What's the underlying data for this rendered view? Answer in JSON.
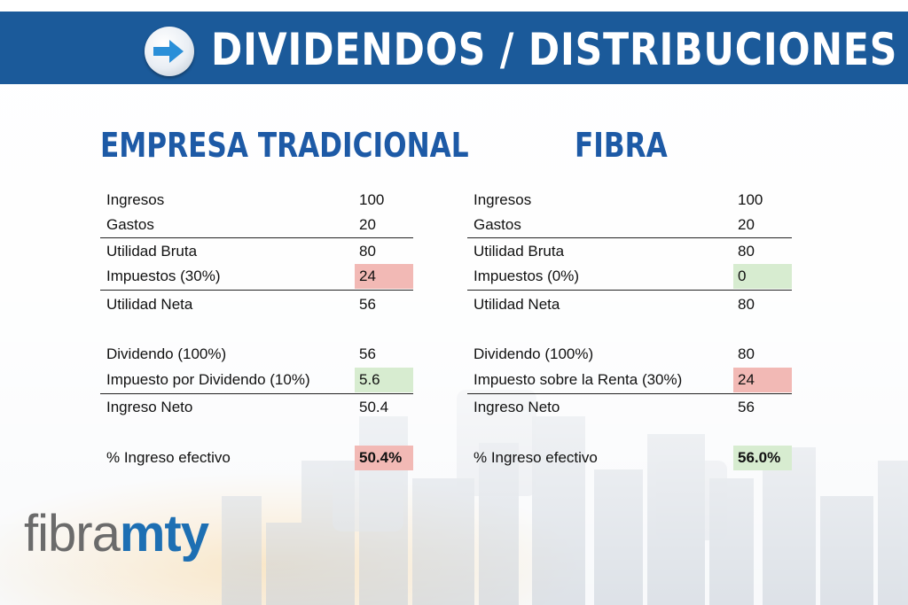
{
  "header": {
    "title": "DIVIDENDOS / DISTRIBUCIONES"
  },
  "left": {
    "title": "EMPRESA TRADICIONAL",
    "rows": [
      {
        "label": "Ingresos",
        "value": "100"
      },
      {
        "label": "Gastos",
        "value": "20"
      },
      {
        "label": "Utilidad Bruta",
        "value": "80"
      },
      {
        "label": "Impuestos (30%)",
        "value": "24"
      },
      {
        "label": "Utilidad Neta",
        "value": "56"
      },
      {
        "label": "Dividendo (100%)",
        "value": "56"
      },
      {
        "label": "Impuesto por Dividendo (10%)",
        "value": "5.6"
      },
      {
        "label": "Ingreso Neto",
        "value": "50.4"
      },
      {
        "label": "% Ingreso efectivo",
        "value": "50.4%"
      }
    ]
  },
  "right": {
    "title": "FIBRA",
    "rows": [
      {
        "label": "Ingresos",
        "value": "100"
      },
      {
        "label": "Gastos",
        "value": "20"
      },
      {
        "label": "Utilidad Bruta",
        "value": "80"
      },
      {
        "label": "Impuestos (0%)",
        "value": "0"
      },
      {
        "label": "Utilidad Neta",
        "value": "80"
      },
      {
        "label": "Dividendo (100%)",
        "value": "80"
      },
      {
        "label": "Impuesto sobre la Renta (30%)",
        "value": "24"
      },
      {
        "label": "Ingreso Neto",
        "value": "56"
      },
      {
        "label": "% Ingreso efectivo",
        "value": "56.0%"
      }
    ]
  },
  "logo": {
    "light": "fibra",
    "bold": "mty"
  },
  "colors": {
    "header": "#1b5a9a",
    "title": "#1d5aa6",
    "negative": "#f2b9b5",
    "positive": "#d7ecd0",
    "logo_bold": "#1d6fb3"
  }
}
